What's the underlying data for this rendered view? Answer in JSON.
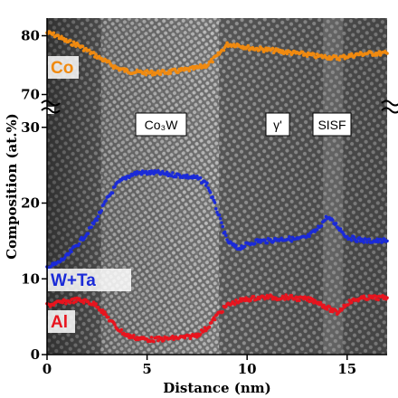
{
  "chart_data": {
    "type": "scatter",
    "title": "",
    "xlabel": "Distance (nm)",
    "ylabel": "Composition (at.%)",
    "x_ticks": [
      0,
      5,
      10,
      15
    ],
    "xlim": [
      0,
      17
    ],
    "y_lower_ticks": [
      0,
      10,
      20,
      30
    ],
    "ylim_lower": [
      0,
      32
    ],
    "y_upper_ticks": [
      70,
      80
    ],
    "ylim_upper": [
      67,
      83
    ],
    "axis_break": "between 32 and 67",
    "background": "HAADF-STEM lattice image",
    "regions": [
      {
        "label": "Co₃W",
        "x_range": [
          2.7,
          8.6
        ]
      },
      {
        "label": "γ'",
        "x_range": [
          8.6,
          13.8
        ]
      },
      {
        "label": "SISF",
        "x_range": [
          13.8,
          14.8
        ]
      }
    ],
    "series": [
      {
        "name": "Co",
        "color": "#f08a10",
        "x": [
          0,
          0.5,
          1,
          1.5,
          2,
          2.5,
          3,
          3.5,
          4,
          4.5,
          5,
          5.5,
          6,
          6.5,
          7,
          7.5,
          8,
          8.5,
          9,
          9.5,
          10,
          10.5,
          11,
          11.5,
          12,
          12.5,
          13,
          13.5,
          14,
          14.5,
          15,
          15.5,
          16,
          16.5,
          17
        ],
        "y": [
          80.5,
          80,
          79,
          78.5,
          77.5,
          76.5,
          75.5,
          74.5,
          74,
          73.8,
          73.7,
          73.7,
          73.8,
          74,
          74.2,
          74.5,
          75,
          76.5,
          78.5,
          78.5,
          78,
          77.8,
          77.6,
          77.4,
          77.2,
          77,
          76.8,
          76.5,
          76.4,
          76.2,
          76.5,
          76.8,
          77,
          77,
          77
        ]
      },
      {
        "name": "W+Ta",
        "color": "#1a2ad8",
        "x": [
          0,
          0.5,
          1,
          1.5,
          2,
          2.5,
          3,
          3.5,
          4,
          4.5,
          5,
          5.5,
          6,
          6.5,
          7,
          7.5,
          8,
          8.5,
          9,
          9.5,
          10,
          10.5,
          11,
          11.5,
          12,
          12.5,
          13,
          13.5,
          14,
          14.5,
          15,
          15.5,
          16,
          16.5,
          17
        ],
        "y": [
          11.5,
          12,
          13,
          14.5,
          16,
          18,
          20.5,
          22.5,
          23.5,
          24,
          24,
          24,
          23.8,
          23.7,
          23.5,
          23.3,
          22.5,
          19,
          15,
          14,
          14.5,
          15,
          15,
          15.2,
          15.3,
          15.2,
          15.5,
          16.5,
          18.2,
          17,
          15.5,
          15.2,
          15,
          15,
          15
        ]
      },
      {
        "name": "Al",
        "color": "#e8141e",
        "x": [
          0,
          0.5,
          1,
          1.5,
          2,
          2.5,
          3,
          3.5,
          4,
          4.5,
          5,
          5.5,
          6,
          6.5,
          7,
          7.5,
          8,
          8.5,
          9,
          9.5,
          10,
          10.5,
          11,
          11.5,
          12,
          12.5,
          13,
          13.5,
          14,
          14.5,
          15,
          15.5,
          16,
          16.5,
          17
        ],
        "y": [
          6.5,
          6.8,
          7,
          7.2,
          7,
          6.5,
          5,
          3.5,
          2.5,
          2.2,
          2,
          2,
          2.1,
          2.2,
          2.3,
          2.6,
          3.5,
          5.2,
          6.5,
          7,
          7.3,
          7.5,
          7.6,
          7.5,
          7.6,
          7.4,
          7.3,
          7,
          6.2,
          5.5,
          6.8,
          7.3,
          7.5,
          7.5,
          7.5
        ]
      }
    ]
  }
}
